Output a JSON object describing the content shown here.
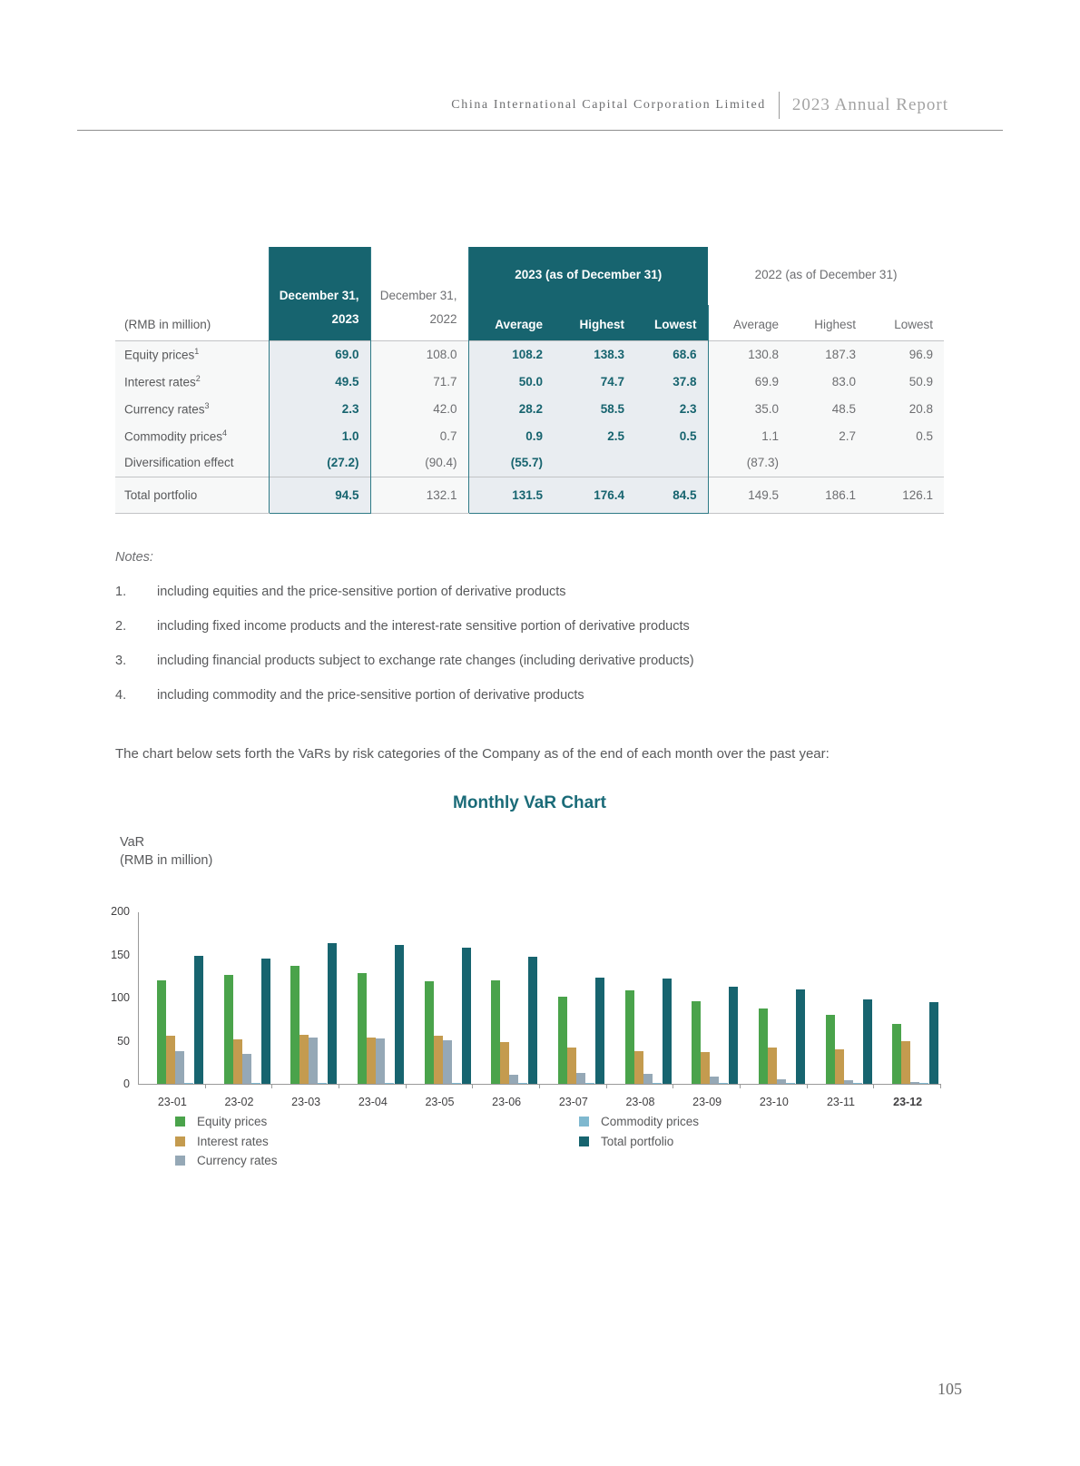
{
  "header": {
    "company": "China International Capital Corporation Limited",
    "report": "2023 Annual Report"
  },
  "table": {
    "corner_label": "(RMB in million)",
    "col_dec2023_line1": "December 31,",
    "col_dec2023_line2": "2023",
    "col_dec2022_line1": "December 31,",
    "col_dec2022_line2": "2022",
    "group_2023": "2023 (as of December 31)",
    "group_2022": "2022 (as of December 31)",
    "sub_headers": [
      "Average",
      "Highest",
      "Lowest"
    ],
    "rows": [
      {
        "label": "Equity prices",
        "sup": "1",
        "values": [
          "69.0",
          "108.0",
          "108.2",
          "138.3",
          "68.6",
          "130.8",
          "187.3",
          "96.9"
        ]
      },
      {
        "label": "Interest rates",
        "sup": "2",
        "values": [
          "49.5",
          "71.7",
          "50.0",
          "74.7",
          "37.8",
          "69.9",
          "83.0",
          "50.9"
        ]
      },
      {
        "label": "Currency rates",
        "sup": "3",
        "values": [
          "2.3",
          "42.0",
          "28.2",
          "58.5",
          "2.3",
          "35.0",
          "48.5",
          "20.8"
        ]
      },
      {
        "label": "Commodity prices",
        "sup": "4",
        "values": [
          "1.0",
          "0.7",
          "0.9",
          "2.5",
          "0.5",
          "1.1",
          "2.7",
          "0.5"
        ]
      },
      {
        "label": "Diversification effect",
        "sup": "",
        "values": [
          "(27.2)",
          "(90.4)",
          "(55.7)",
          "",
          "",
          "(87.3)",
          "",
          ""
        ]
      },
      {
        "label": "Total portfolio",
        "sup": "",
        "total": true,
        "values": [
          "94.5",
          "132.1",
          "131.5",
          "176.4",
          "84.5",
          "149.5",
          "186.1",
          "126.1"
        ]
      }
    ]
  },
  "notes": {
    "heading": "Notes:",
    "items": [
      {
        "num": "1.",
        "text": "including equities and the price-sensitive portion of derivative products"
      },
      {
        "num": "2.",
        "text": "including fixed income products and the interest-rate sensitive portion of derivative products"
      },
      {
        "num": "3.",
        "text": "including financial products subject to exchange rate changes (including derivative products)"
      },
      {
        "num": "4.",
        "text": "including commodity and the price-sensitive portion of derivative products"
      }
    ]
  },
  "lead_paragraph": "The chart below sets forth the VaRs by risk categories of the Company as of the end of each month over the past year:",
  "chart_data": {
    "type": "bar",
    "title": "Monthly VaR Chart",
    "ylabel_line1": "VaR",
    "ylabel_line2": "(RMB in million)",
    "ylim": [
      0,
      200
    ],
    "yticks": [
      0,
      50,
      100,
      150,
      200
    ],
    "grid": false,
    "legend_position": "bottom",
    "categories": [
      "23-01",
      "23-02",
      "23-03",
      "23-04",
      "23-05",
      "23-06",
      "23-07",
      "23-08",
      "23-09",
      "23-10",
      "23-11",
      "23-12"
    ],
    "series": [
      {
        "name": "Equity prices",
        "color": "#4aa34b",
        "values": [
          120,
          126,
          137,
          128,
          119,
          120,
          101,
          108,
          96,
          87,
          80,
          69
        ]
      },
      {
        "name": "Interest rates",
        "color": "#c49b4f",
        "values": [
          56,
          52,
          57,
          54,
          56,
          48,
          42,
          38,
          37,
          42,
          40,
          49.5
        ]
      },
      {
        "name": "Currency rates",
        "color": "#95a8b6",
        "values": [
          38,
          35,
          54,
          53,
          50,
          10,
          13,
          12,
          8,
          5,
          4,
          2.3
        ]
      },
      {
        "name": "Commodity prices",
        "color": "#7fb8cf",
        "values": [
          1,
          1,
          1,
          1,
          1,
          1,
          1,
          1,
          1,
          1,
          1,
          1
        ]
      },
      {
        "name": "Total portfolio",
        "color": "#17646f",
        "values": [
          148,
          145,
          163,
          161,
          158,
          147,
          123,
          122,
          113,
          109,
          98,
          94.5
        ]
      }
    ]
  },
  "colors": {
    "accent_teal": "#17646f",
    "highlight_bg": "#e9edf1",
    "body_text": "#58595b",
    "muted_text": "#6d6e71"
  },
  "page_number": "105"
}
